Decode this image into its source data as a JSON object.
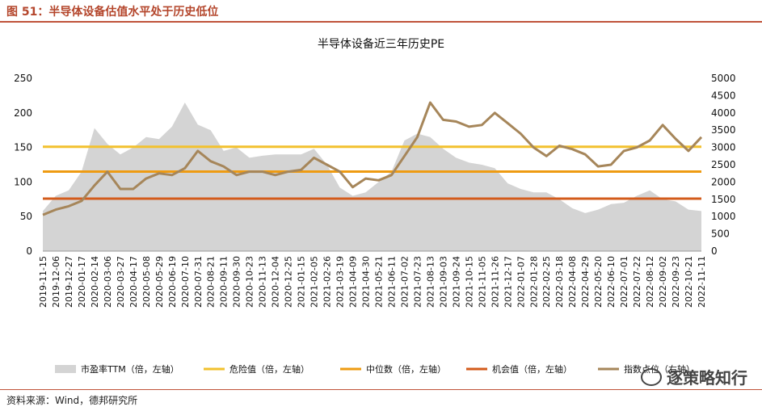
{
  "figure_title": "图 51：半导体设备估值水平处于历史低位",
  "source_note": "资料来源：Wind，德邦研究所",
  "watermark": "逐策略知行",
  "chart_data": {
    "type": "area+line",
    "title": "半导体设备近三年历史PE",
    "left_axis": {
      "min": 0,
      "max": 250,
      "ticks": [
        0,
        50,
        100,
        150,
        200,
        250
      ]
    },
    "right_axis": {
      "min": 0,
      "max": 5000,
      "ticks": [
        0,
        500,
        1000,
        1500,
        2000,
        2500,
        3000,
        3500,
        4000,
        4500,
        5000
      ]
    },
    "categories": [
      "2019-11-15",
      "2019-12-06",
      "2019-12-27",
      "2020-01-17",
      "2020-02-14",
      "2020-03-06",
      "2020-03-27",
      "2020-04-17",
      "2020-05-08",
      "2020-05-29",
      "2020-06-19",
      "2020-07-10",
      "2020-07-31",
      "2020-08-21",
      "2020-09-11",
      "2020-09-30",
      "2020-10-23",
      "2020-11-13",
      "2020-12-04",
      "2020-12-25",
      "2021-01-15",
      "2021-02-05",
      "2021-02-26",
      "2021-03-19",
      "2021-04-09",
      "2021-04-30",
      "2021-05-21",
      "2021-06-11",
      "2021-07-02",
      "2021-07-23",
      "2021-08-13",
      "2021-09-03",
      "2021-09-24",
      "2021-10-15",
      "2021-11-05",
      "2021-11-26",
      "2021-12-17",
      "2022-01-07",
      "2022-01-28",
      "2022-02-25",
      "2022-03-18",
      "2022-04-08",
      "2022-04-29",
      "2022-05-20",
      "2022-06-10",
      "2022-07-01",
      "2022-07-22",
      "2022-08-12",
      "2022-09-02",
      "2022-09-23",
      "2022-10-21",
      "2022-11-11"
    ],
    "series": [
      {
        "name": "市盈率TTM（倍，左轴）",
        "axis": "left",
        "kind": "area",
        "color": "#d4d4d4",
        "values": [
          58,
          80,
          88,
          115,
          178,
          155,
          140,
          150,
          165,
          162,
          180,
          215,
          183,
          175,
          145,
          150,
          135,
          138,
          140,
          140,
          140,
          148,
          125,
          92,
          80,
          85,
          100,
          115,
          160,
          170,
          165,
          148,
          135,
          128,
          125,
          120,
          98,
          90,
          85,
          85,
          75,
          62,
          55,
          60,
          68,
          70,
          80,
          88,
          75,
          72,
          60,
          58
        ]
      },
      {
        "name": "危险值（倍，左轴）",
        "axis": "left",
        "kind": "hline",
        "color": "#f2c12e",
        "value": 151
      },
      {
        "name": "中位数（倍，左轴）",
        "axis": "left",
        "kind": "hline",
        "color": "#ee9b12",
        "value": 115
      },
      {
        "name": "机会值（倍，左轴）",
        "axis": "left",
        "kind": "hline",
        "color": "#d35b1b",
        "value": 76
      },
      {
        "name": "指数点位（右轴）",
        "axis": "right",
        "kind": "line",
        "color": "#a6865a",
        "values": [
          1050,
          1200,
          1300,
          1450,
          1900,
          2300,
          1800,
          1800,
          2100,
          2250,
          2200,
          2400,
          2900,
          2600,
          2450,
          2200,
          2300,
          2300,
          2200,
          2300,
          2350,
          2700,
          2500,
          2300,
          1850,
          2100,
          2050,
          2200,
          2750,
          3300,
          4300,
          3800,
          3750,
          3600,
          3650,
          4000,
          3700,
          3400,
          3000,
          2750,
          3050,
          2950,
          2800,
          2450,
          2500,
          2900,
          3000,
          3200,
          3650,
          3250,
          2900,
          3300
        ]
      }
    ]
  },
  "legend": [
    {
      "label": "市盈率TTM（倍，左轴）",
      "color": "#d4d4d4",
      "kind": "area"
    },
    {
      "label": "危险值（倍，左轴）",
      "color": "#f2c12e",
      "kind": "line"
    },
    {
      "label": "中位数（倍，左轴）",
      "color": "#ee9b12",
      "kind": "line"
    },
    {
      "label": "机会值（倍，左轴）",
      "color": "#d35b1b",
      "kind": "line"
    },
    {
      "label": "指数点位（右轴）",
      "color": "#a6865a",
      "kind": "line"
    }
  ]
}
